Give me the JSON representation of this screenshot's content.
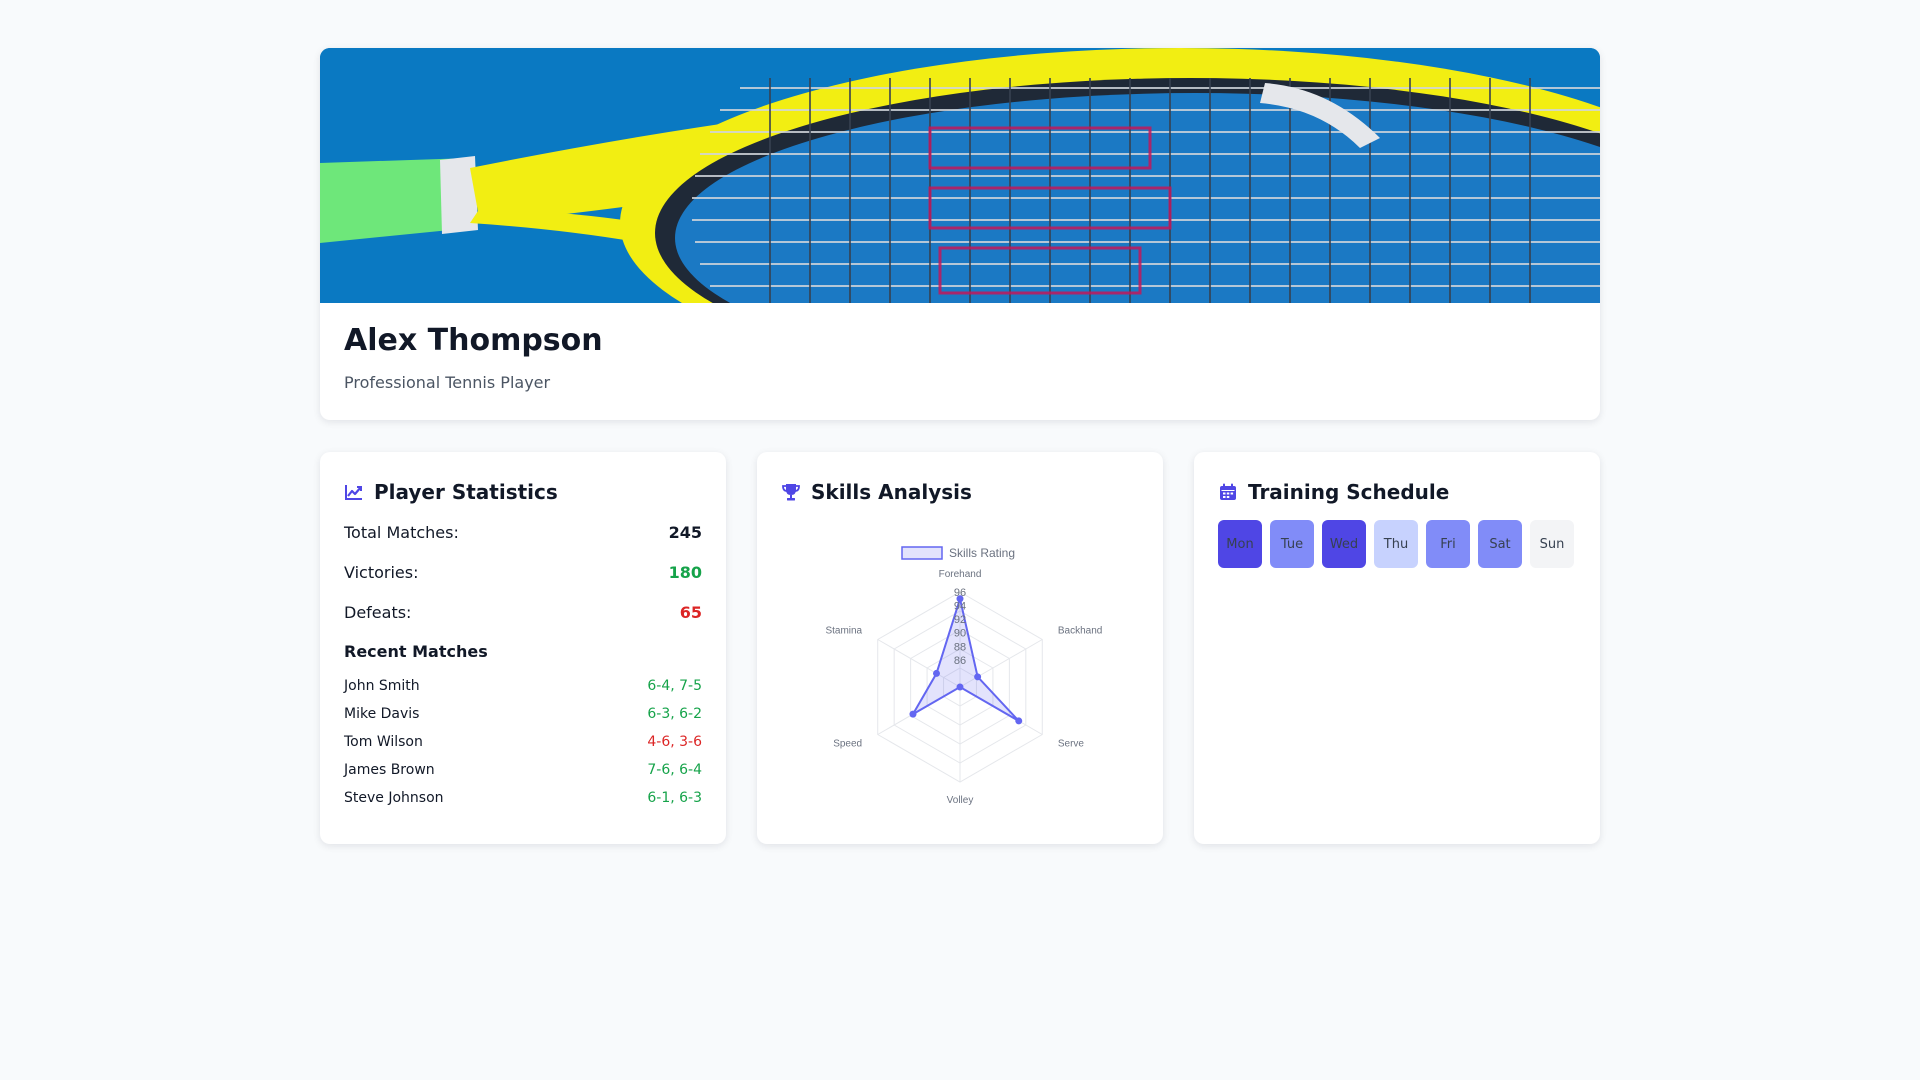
{
  "profile": {
    "name": "Alex Thompson",
    "role": "Professional Tennis Player"
  },
  "stats": {
    "title": "Player Statistics",
    "icon": "chart-line-icon",
    "total_label": "Total Matches:",
    "total_value": "245",
    "victories_label": "Victories:",
    "victories_value": "180",
    "defeats_label": "Defeats:",
    "defeats_value": "65",
    "recent_title": "Recent Matches",
    "recent_matches": [
      {
        "opponent": "John Smith",
        "score": "6-4, 7-5",
        "result": "win"
      },
      {
        "opponent": "Mike Davis",
        "score": "6-3, 6-2",
        "result": "win"
      },
      {
        "opponent": "Tom Wilson",
        "score": "4-6, 3-6",
        "result": "loss"
      },
      {
        "opponent": "James Brown",
        "score": "7-6, 6-4",
        "result": "win"
      },
      {
        "opponent": "Steve Johnson",
        "score": "6-1, 6-3",
        "result": "win"
      }
    ]
  },
  "skills": {
    "title": "Skills Analysis",
    "icon": "trophy-icon"
  },
  "training": {
    "title": "Training Schedule",
    "icon": "calendar-icon",
    "days": [
      {
        "label": "Mon",
        "color": "#4f46e5"
      },
      {
        "label": "Tue",
        "color": "#818cf8"
      },
      {
        "label": "Wed",
        "color": "#4f46e5"
      },
      {
        "label": "Thu",
        "color": "#c7d2fe"
      },
      {
        "label": "Fri",
        "color": "#818cf8"
      },
      {
        "label": "Sat",
        "color": "#818cf8"
      },
      {
        "label": "Sun",
        "color": "#f3f4f6"
      }
    ]
  },
  "colors": {
    "accent": "#4f46e5",
    "win": "#16a34a",
    "loss": "#dc2626"
  },
  "chart_data": {
    "type": "radar",
    "categories": [
      "Forehand",
      "Backhand",
      "Serve",
      "Volley",
      "Speed",
      "Stamina"
    ],
    "series": [
      {
        "name": "Skills Rating",
        "values": [
          95,
          85,
          92,
          82,
          90,
          86
        ]
      }
    ],
    "ticks": [
      "86",
      "88",
      "90",
      "92",
      "94",
      "96"
    ],
    "range": [
      82,
      96
    ],
    "legend": "top"
  }
}
